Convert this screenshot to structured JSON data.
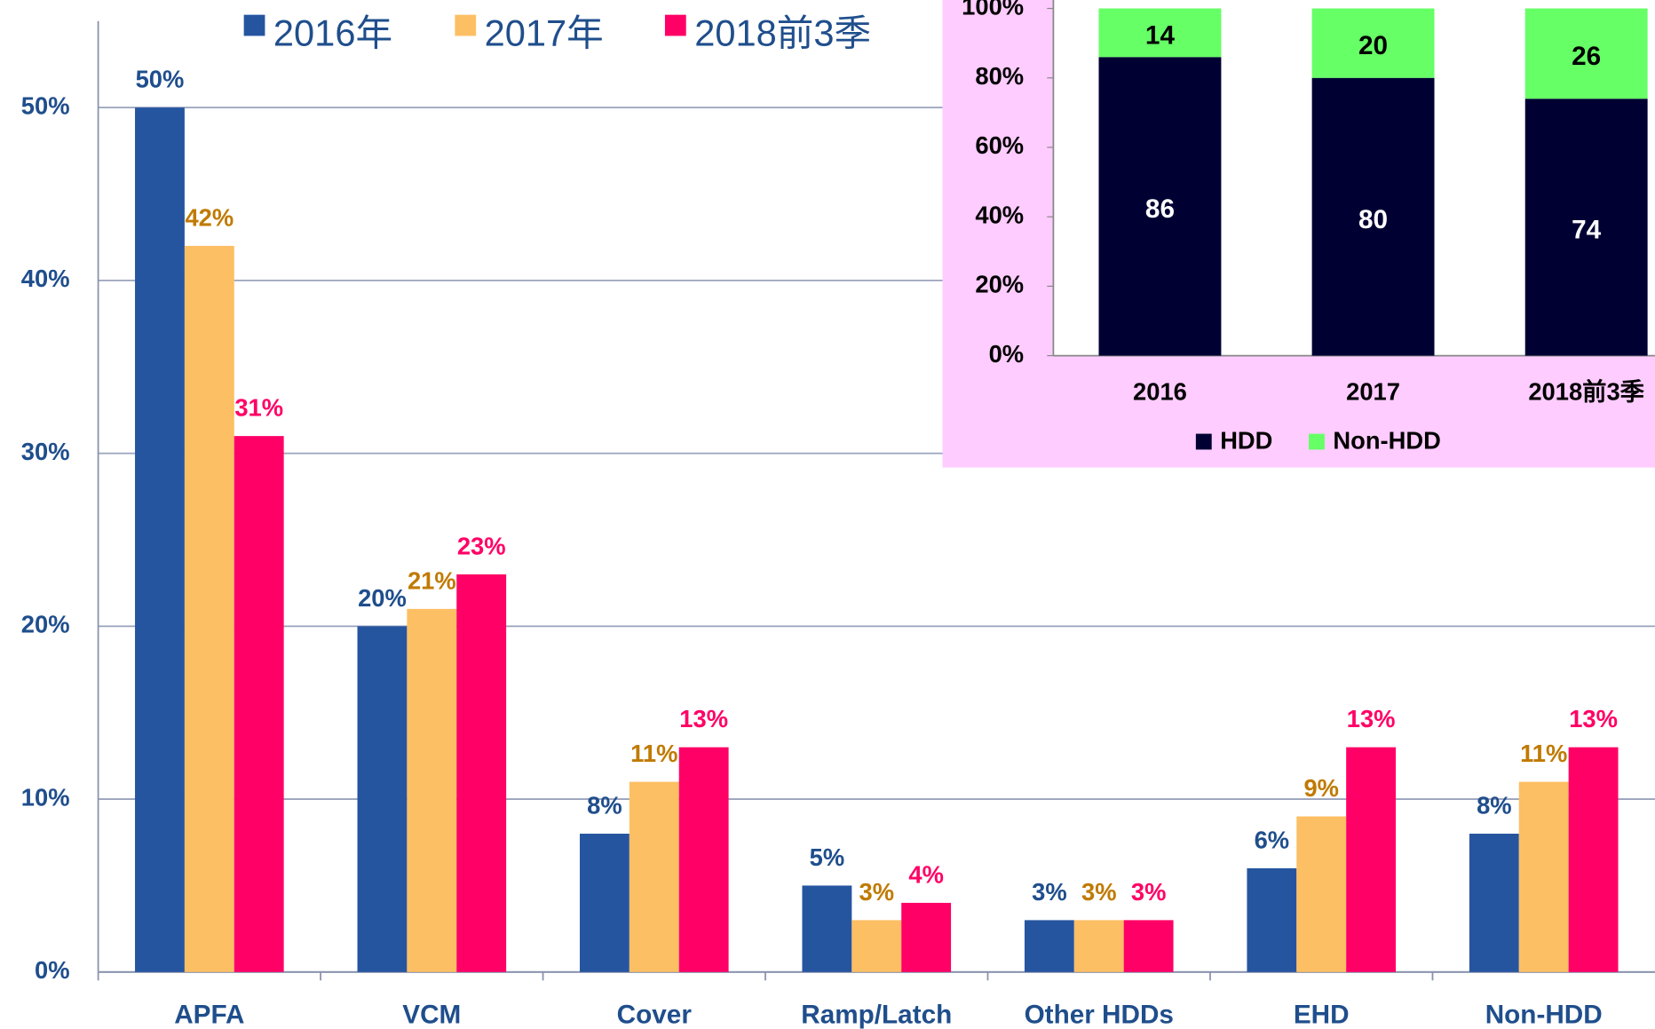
{
  "chart_data": [
    {
      "type": "bar",
      "categories": [
        "APFA",
        "VCM",
        "Cover",
        "Ramp/Latch",
        "Other HDDs",
        "EHD",
        "Non-HDD"
      ],
      "series": [
        {
          "name": "2016年",
          "color": "#2655a0",
          "label_color": "#1f4e8c",
          "values": [
            50,
            20,
            8,
            5,
            3,
            6,
            8
          ],
          "value_labels": [
            "50%",
            "20%",
            "8%",
            "5%",
            "3%",
            "6%",
            "8%"
          ]
        },
        {
          "name": "2017年",
          "color": "#fdbf63",
          "label_color": "#c07a00",
          "values": [
            42,
            21,
            11,
            3,
            3,
            9,
            11
          ],
          "value_labels": [
            "42%",
            "21%",
            "11%",
            "3%",
            "3%",
            "9%",
            "11%"
          ]
        },
        {
          "name": "2018前3季",
          "color": "#ff0066",
          "label_color": "#ff0066",
          "values": [
            31,
            23,
            13,
            4,
            3,
            13,
            13
          ],
          "value_labels": [
            "31%",
            "23%",
            "13%",
            "4%",
            "3%",
            "13%",
            "13%"
          ]
        }
      ],
      "ylim": [
        0,
        55
      ],
      "yticks": [
        {
          "value": 0,
          "label": "0%"
        },
        {
          "value": 10,
          "label": "10%"
        },
        {
          "value": 20,
          "label": "20%"
        },
        {
          "value": 30,
          "label": "30%"
        },
        {
          "value": 40,
          "label": "40%"
        },
        {
          "value": 50,
          "label": "50%"
        }
      ],
      "grid": true,
      "legend": "top"
    },
    {
      "type": "stacked_bar",
      "categories": [
        "2016",
        "2017",
        "2018前3季"
      ],
      "series": [
        {
          "name": "HDD",
          "color": "#000033",
          "label_color": "#ffffff",
          "values": [
            86,
            80,
            74
          ]
        },
        {
          "name": "Non-HDD",
          "color": "#66ff66",
          "label_color": "#000000",
          "values": [
            14,
            20,
            26
          ]
        }
      ],
      "ylim": [
        0,
        100
      ],
      "yticks": [
        {
          "value": 0,
          "label": "0%"
        },
        {
          "value": 20,
          "label": "20%"
        },
        {
          "value": 40,
          "label": "40%"
        },
        {
          "value": 60,
          "label": "60%"
        },
        {
          "value": 80,
          "label": "80%"
        },
        {
          "value": 100,
          "label": "100%"
        }
      ],
      "legend": "bottom"
    }
  ]
}
